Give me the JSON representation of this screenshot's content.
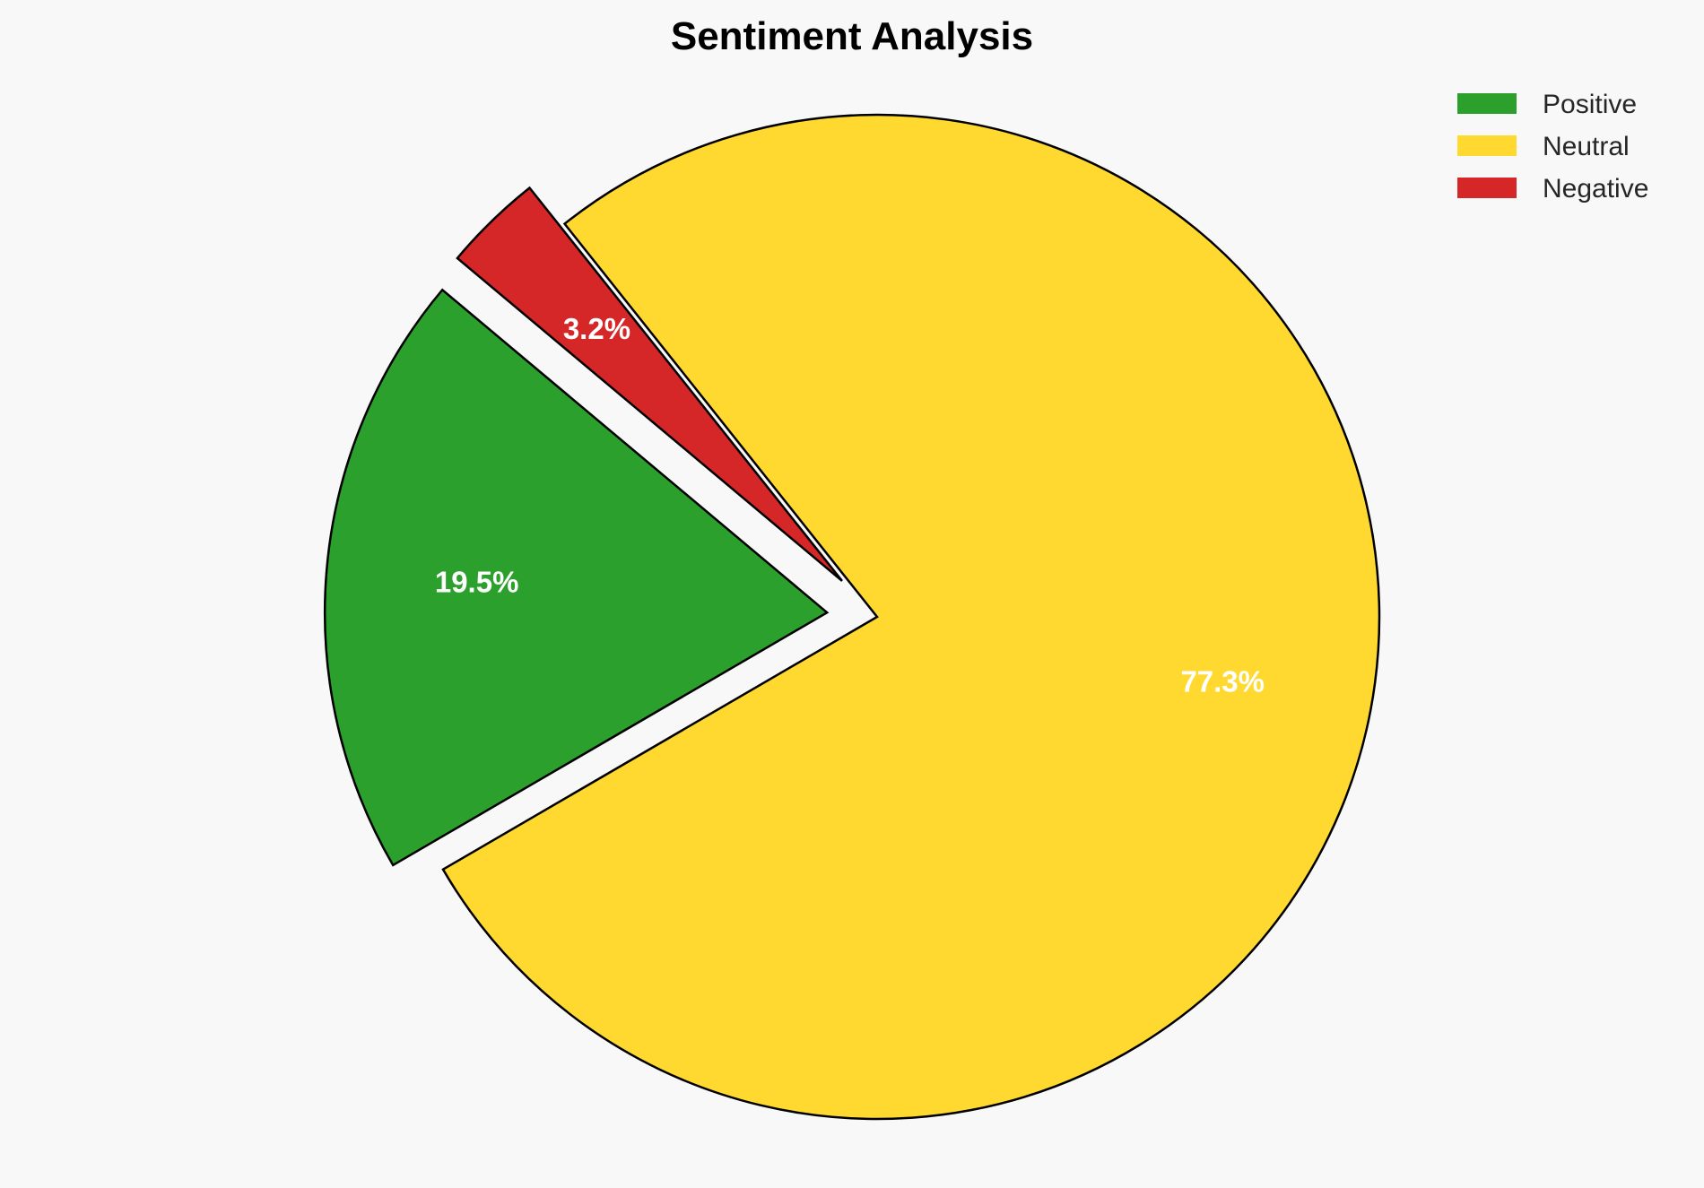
{
  "chart_data": {
    "type": "pie",
    "title": "Sentiment Analysis",
    "categories": [
      "Positive",
      "Neutral",
      "Negative"
    ],
    "values": [
      19.5,
      77.3,
      3.2
    ],
    "labels": [
      "19.5%",
      "77.3%",
      "3.2%"
    ],
    "colors": [
      "#2ca02c",
      "#ffd92f",
      "#d62728"
    ],
    "explode": [
      0.1,
      0,
      0.1
    ],
    "start_angle_deg": 140,
    "legend_position": "top-right"
  }
}
